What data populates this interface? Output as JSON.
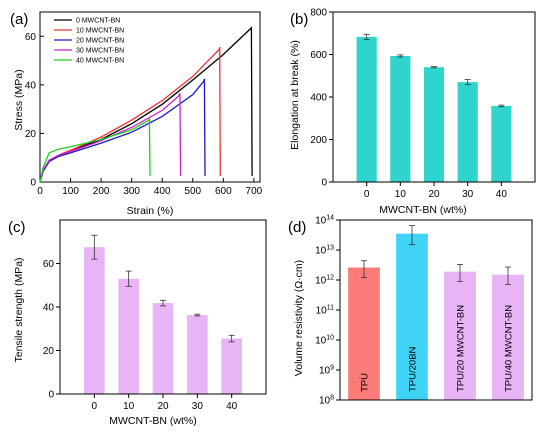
{
  "panels": [
    {
      "id": "a",
      "letter": "(a)"
    },
    {
      "id": "b",
      "letter": "(b)"
    },
    {
      "id": "c",
      "letter": "(c)"
    },
    {
      "id": "d",
      "letter": "(d)"
    }
  ],
  "chart_data": [
    {
      "panel": "(a)",
      "type": "line",
      "xlabel": "Strain (%)",
      "ylabel": "Stress (MPa)",
      "xlim": [
        0,
        720
      ],
      "ylim": [
        0,
        70
      ],
      "xticks": [
        0,
        100,
        200,
        300,
        400,
        500,
        600,
        700
      ],
      "yticks": [
        0,
        20,
        40,
        60
      ],
      "legend_position": "top-left",
      "series": [
        {
          "name": "0 MWCNT-BN",
          "color": "#000000",
          "points": [
            [
              0,
              0
            ],
            [
              10,
              4.5
            ],
            [
              30,
              8.5
            ],
            [
              60,
              11
            ],
            [
              100,
              13
            ],
            [
              200,
              17.5
            ],
            [
              300,
              24
            ],
            [
              400,
              32
            ],
            [
              500,
              42
            ],
            [
              600,
              52.5
            ],
            [
              688,
              63
            ],
            [
              692,
              63.5
            ],
            [
              694,
              2.5
            ]
          ]
        },
        {
          "name": "10 MWCNT-BN",
          "color": "#ee3333",
          "points": [
            [
              0,
              0
            ],
            [
              10,
              4.5
            ],
            [
              30,
              8.5
            ],
            [
              60,
              11
            ],
            [
              100,
              13
            ],
            [
              200,
              18.5
            ],
            [
              300,
              25.5
            ],
            [
              400,
              33.5
            ],
            [
              500,
              43.5
            ],
            [
              586,
              54.5
            ],
            [
              588,
              55.5
            ],
            [
              590,
              2.5
            ]
          ]
        },
        {
          "name": "20 MWCNT-BN",
          "color": "#1a1acc",
          "points": [
            [
              0,
              0
            ],
            [
              10,
              4.5
            ],
            [
              30,
              8.5
            ],
            [
              60,
              10.5
            ],
            [
              100,
              12
            ],
            [
              200,
              16
            ],
            [
              300,
              20.5
            ],
            [
              400,
              27
            ],
            [
              500,
              36
            ],
            [
              536,
              41.5
            ],
            [
              538,
              42.5
            ],
            [
              540,
              2.5
            ]
          ]
        },
        {
          "name": "30 MWCNT-BN",
          "color": "#cc22cc",
          "points": [
            [
              0,
              0
            ],
            [
              10,
              5
            ],
            [
              30,
              9
            ],
            [
              60,
              11
            ],
            [
              100,
              12.5
            ],
            [
              200,
              17
            ],
            [
              300,
              22.5
            ],
            [
              400,
              29.5
            ],
            [
              455,
              35.5
            ],
            [
              458,
              36.5
            ],
            [
              460,
              2.5
            ]
          ]
        },
        {
          "name": "40 MWCNT-BN",
          "color": "#22cc22",
          "points": [
            [
              0,
              0
            ],
            [
              10,
              6
            ],
            [
              30,
              12
            ],
            [
              60,
              13.5
            ],
            [
              100,
              14.5
            ],
            [
              200,
              17.5
            ],
            [
              300,
              21.5
            ],
            [
              357,
              25.5
            ],
            [
              358,
              26.5
            ],
            [
              360,
              2.5
            ]
          ]
        }
      ]
    },
    {
      "panel": "(b)",
      "type": "bar",
      "xlabel": "MWCNT-BN (wt%)",
      "ylabel": "Elongation at break (%)",
      "categories": [
        "0",
        "10",
        "20",
        "30",
        "40"
      ],
      "values": [
        683,
        593,
        540,
        470,
        358
      ],
      "errors": [
        12,
        5,
        3,
        12,
        4
      ],
      "ylim": [
        0,
        800
      ],
      "yticks": [
        0,
        200,
        400,
        600,
        800
      ],
      "color": "#2fd4cf"
    },
    {
      "panel": "(c)",
      "type": "bar",
      "xlabel": "MWCNT-BN (wt%)",
      "ylabel": "Tensile strength (MPa)",
      "categories": [
        "0",
        "10",
        "20",
        "30",
        "40"
      ],
      "values": [
        67.5,
        53,
        41.8,
        36.3,
        25.5
      ],
      "errors": [
        5.5,
        3.5,
        1.3,
        0.4,
        1.5
      ],
      "ylim": [
        0,
        80
      ],
      "yticks": [
        0,
        20,
        40,
        60
      ],
      "color": "#e8b4f5"
    },
    {
      "panel": "(d)",
      "type": "bar",
      "scale": "log",
      "xlabel": "",
      "ylabel": "Volume resistivity (Ω·cm)",
      "categories": [
        "TPU",
        "TPU/20BN",
        "TPU/20 MWCNT-BN",
        "TPU/40 MWCNT-BN"
      ],
      "values": [
        2600000000000.0,
        35000000000000.0,
        1900000000000.0,
        1500000000000.0
      ],
      "errors_low": [
        1200000000000.0,
        15000000000000.0,
        900000000000.0,
        700000000000.0
      ],
      "errors_high": [
        4400000000000.0,
        65000000000000.0,
        3300000000000.0,
        2700000000000.0
      ],
      "ylim": [
        100000000.0,
        100000000000000.0
      ],
      "ytick_exponents": [
        8,
        9,
        10,
        11,
        12,
        13,
        14
      ],
      "ytick_base": "10",
      "colors": [
        "#fa7b78",
        "#3fd3f5",
        "#e8b4f5",
        "#e8b4f5"
      ]
    }
  ]
}
